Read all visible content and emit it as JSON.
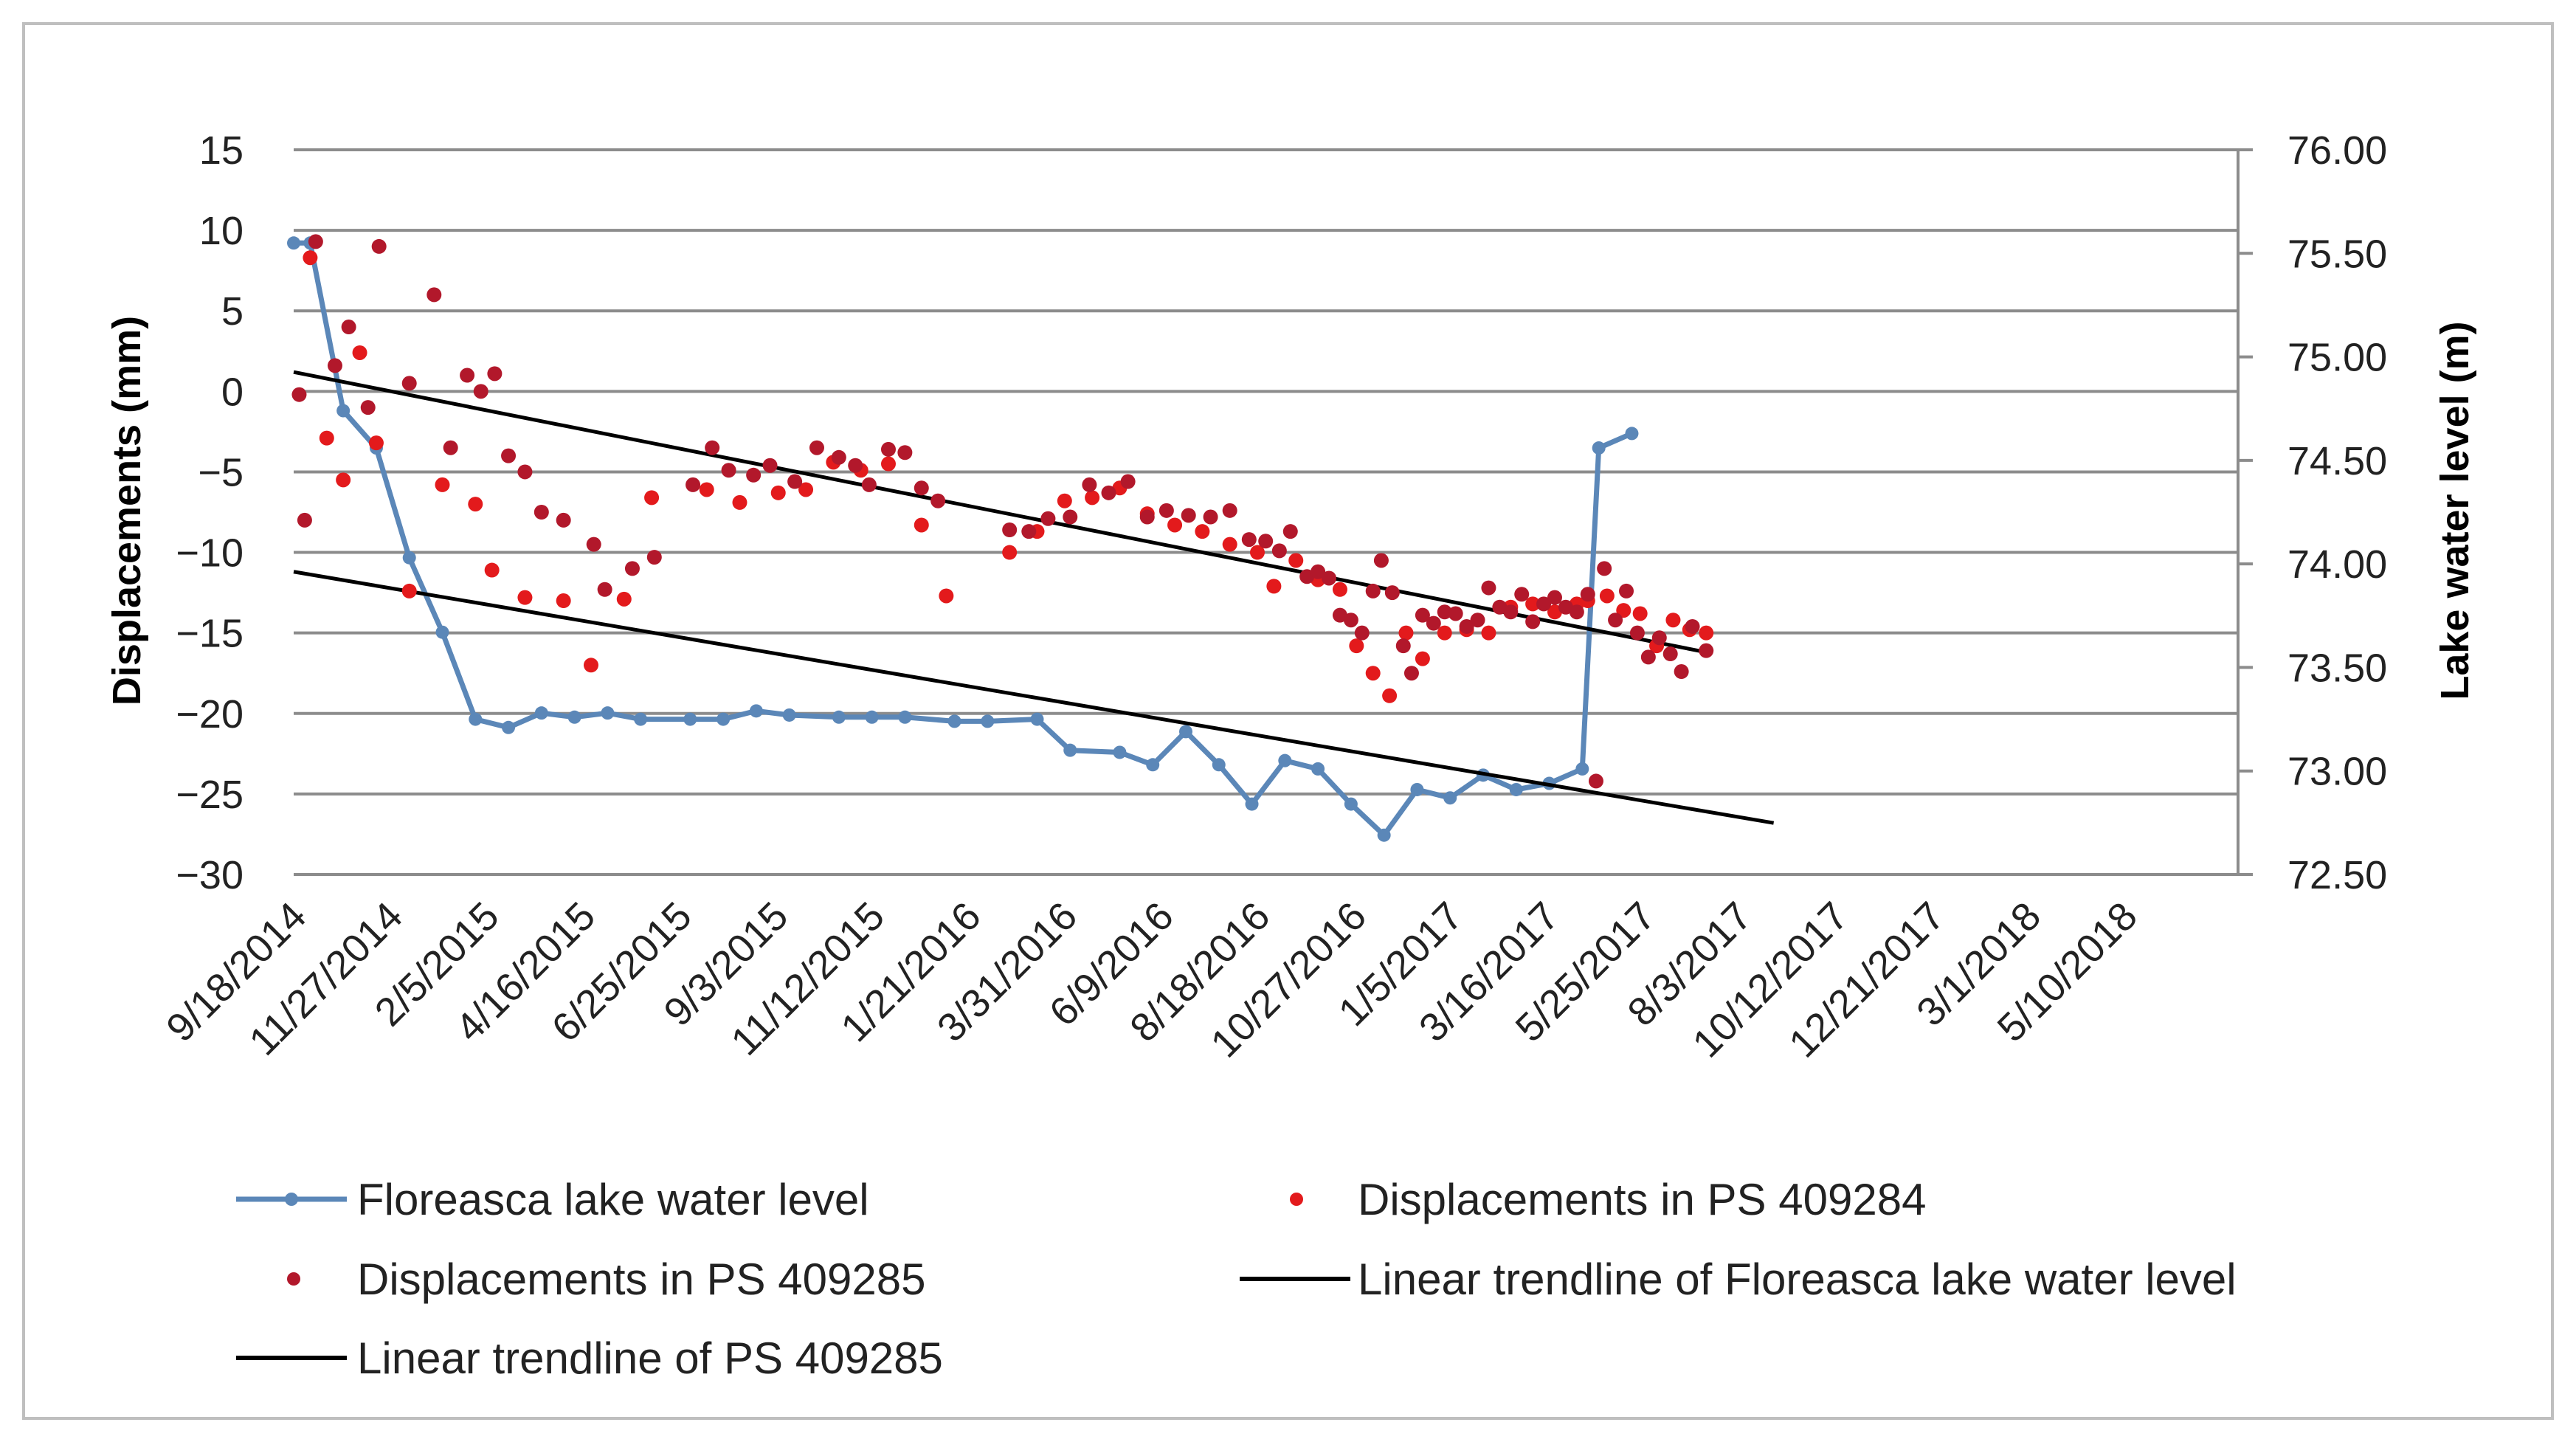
{
  "chart_data": {
    "type": "line",
    "ylabel_left": "Displacements  (mm)",
    "ylabel_right": "Lake water level (m)",
    "ylim_left": [
      -30,
      15
    ],
    "yticks_left": [
      "15",
      "10",
      "5",
      "0",
      "−5",
      "−10",
      "−15",
      "−20",
      "−25",
      "−30"
    ],
    "ylim_right": [
      72.5,
      76.0
    ],
    "yticks_right": [
      "76.00",
      "75.50",
      "75.00",
      "74.50",
      "74.00",
      "73.50",
      "73.00",
      "72.50"
    ],
    "x_tick_labels": [
      "9/18/2014",
      "11/27/2014",
      "2/5/2015",
      "4/16/2015",
      "6/25/2015",
      "9/3/2015",
      "11/12/2015",
      "1/21/2016",
      "3/31/2016",
      "6/9/2016",
      "8/18/2016",
      "10/27/2016",
      "1/5/2017",
      "3/16/2017",
      "5/25/2017",
      "8/3/2017",
      "10/12/2017",
      "12/21/2017",
      "3/1/2018",
      "5/10/2018"
    ],
    "x_unit": "days since 9/18/2014 (ticks every 70 days)",
    "series": [
      {
        "name": "Floreasca lake water level",
        "type": "line-markers",
        "axis": "right",
        "color": "#5b87b8",
        "points": [
          [
            0,
            75.55
          ],
          [
            12,
            75.55
          ],
          [
            36,
            74.74
          ],
          [
            60,
            74.56
          ],
          [
            84,
            74.03
          ],
          [
            108,
            73.67
          ],
          [
            132,
            73.25
          ],
          [
            156,
            73.21
          ],
          [
            180,
            73.28
          ],
          [
            204,
            73.26
          ],
          [
            228,
            73.28
          ],
          [
            252,
            73.25
          ],
          [
            288,
            73.25
          ],
          [
            312,
            73.25
          ],
          [
            336,
            73.29
          ],
          [
            360,
            73.27
          ],
          [
            396,
            73.26
          ],
          [
            420,
            73.26
          ],
          [
            444,
            73.26
          ],
          [
            480,
            73.24
          ],
          [
            504,
            73.24
          ],
          [
            540,
            73.25
          ],
          [
            564,
            73.1
          ],
          [
            600,
            73.09
          ],
          [
            624,
            73.03
          ],
          [
            648,
            73.19
          ],
          [
            672,
            73.03
          ],
          [
            696,
            72.84
          ],
          [
            720,
            73.05
          ],
          [
            744,
            73.01
          ],
          [
            768,
            72.84
          ],
          [
            792,
            72.69
          ],
          [
            816,
            72.91
          ],
          [
            840,
            72.87
          ],
          [
            864,
            72.98
          ],
          [
            888,
            72.91
          ],
          [
            912,
            72.94
          ],
          [
            936,
            73.01
          ],
          [
            948,
            74.56
          ],
          [
            972,
            74.63
          ]
        ]
      },
      {
        "name": "Displacements in PS 409284",
        "type": "scatter",
        "axis": "left",
        "color": "#e31a1c",
        "points": [
          [
            12,
            8.3
          ],
          [
            24,
            -2.9
          ],
          [
            36,
            -5.5
          ],
          [
            48,
            2.4
          ],
          [
            60,
            -3.2
          ],
          [
            84,
            -12.4
          ],
          [
            108,
            -5.8
          ],
          [
            132,
            -7
          ],
          [
            144,
            -11.1
          ],
          [
            168,
            -12.8
          ],
          [
            196,
            -13
          ],
          [
            216,
            -17
          ],
          [
            240,
            -12.9
          ],
          [
            260,
            -6.6
          ],
          [
            300,
            -6.1
          ],
          [
            324,
            -6.9
          ],
          [
            352,
            -6.3
          ],
          [
            372,
            -6.1
          ],
          [
            392,
            -4.4
          ],
          [
            412,
            -4.9
          ],
          [
            432,
            -4.5
          ],
          [
            456,
            -8.3
          ],
          [
            474,
            -12.7
          ],
          [
            520,
            -10
          ],
          [
            540,
            -8.7
          ],
          [
            560,
            -6.8
          ],
          [
            580,
            -6.6
          ],
          [
            600,
            -6
          ],
          [
            620,
            -7.6
          ],
          [
            640,
            -8.3
          ],
          [
            660,
            -8.7
          ],
          [
            680,
            -9.5
          ],
          [
            700,
            -10
          ],
          [
            712,
            -12.1
          ],
          [
            728,
            -10.5
          ],
          [
            744,
            -11.7
          ],
          [
            760,
            -12.3
          ],
          [
            772,
            -15.8
          ],
          [
            784,
            -17.5
          ],
          [
            796,
            -18.9
          ],
          [
            808,
            -15
          ],
          [
            820,
            -16.6
          ],
          [
            836,
            -15
          ],
          [
            852,
            -14.8
          ],
          [
            868,
            -15
          ],
          [
            884,
            -13.4
          ],
          [
            900,
            -13.2
          ],
          [
            916,
            -13.7
          ],
          [
            932,
            -13.2
          ],
          [
            940,
            -13
          ],
          [
            954,
            -12.7
          ],
          [
            966,
            -13.6
          ],
          [
            978,
            -13.8
          ],
          [
            990,
            -15.8
          ],
          [
            1002,
            -14.2
          ],
          [
            1014,
            -14.8
          ],
          [
            1026,
            -15
          ]
        ]
      },
      {
        "name": "Displacements in PS 409285",
        "type": "scatter",
        "axis": "left",
        "color": "#b2182b",
        "points": [
          [
            4,
            -0.2
          ],
          [
            8,
            -8
          ],
          [
            16,
            9.3
          ],
          [
            30,
            1.6
          ],
          [
            40,
            4
          ],
          [
            54,
            -1
          ],
          [
            62,
            9
          ],
          [
            84,
            0.5
          ],
          [
            102,
            6
          ],
          [
            114,
            -3.5
          ],
          [
            126,
            1
          ],
          [
            136,
            0
          ],
          [
            146,
            1.1
          ],
          [
            156,
            -4
          ],
          [
            168,
            -5
          ],
          [
            180,
            -7.5
          ],
          [
            196,
            -8
          ],
          [
            218,
            -9.5
          ],
          [
            226,
            -12.3
          ],
          [
            246,
            -11
          ],
          [
            262,
            -10.3
          ],
          [
            290,
            -5.8
          ],
          [
            304,
            -3.5
          ],
          [
            316,
            -4.9
          ],
          [
            334,
            -5.2
          ],
          [
            346,
            -4.6
          ],
          [
            364,
            -5.6
          ],
          [
            380,
            -3.5
          ],
          [
            396,
            -4.1
          ],
          [
            408,
            -4.6
          ],
          [
            418,
            -5.8
          ],
          [
            432,
            -3.6
          ],
          [
            444,
            -3.8
          ],
          [
            456,
            -6
          ],
          [
            468,
            -6.8
          ],
          [
            520,
            -8.6
          ],
          [
            534,
            -8.7
          ],
          [
            548,
            -7.9
          ],
          [
            564,
            -7.8
          ],
          [
            578,
            -5.8
          ],
          [
            592,
            -6.3
          ],
          [
            606,
            -5.6
          ],
          [
            620,
            -7.8
          ],
          [
            634,
            -7.4
          ],
          [
            650,
            -7.7
          ],
          [
            666,
            -7.8
          ],
          [
            680,
            -7.4
          ],
          [
            694,
            -9.2
          ],
          [
            706,
            -9.3
          ],
          [
            716,
            -9.9
          ],
          [
            724,
            -8.7
          ],
          [
            736,
            -11.5
          ],
          [
            744,
            -11.2
          ],
          [
            752,
            -11.6
          ],
          [
            760,
            -13.9
          ],
          [
            768,
            -14.2
          ],
          [
            776,
            -15
          ],
          [
            784,
            -12.4
          ],
          [
            790,
            -10.5
          ],
          [
            798,
            -12.5
          ],
          [
            806,
            -15.8
          ],
          [
            812,
            -17.5
          ],
          [
            820,
            -13.9
          ],
          [
            828,
            -14.4
          ],
          [
            836,
            -13.7
          ],
          [
            844,
            -13.8
          ],
          [
            852,
            -14.6
          ],
          [
            860,
            -14.2
          ],
          [
            868,
            -12.2
          ],
          [
            876,
            -13.4
          ],
          [
            884,
            -13.7
          ],
          [
            892,
            -12.6
          ],
          [
            900,
            -14.3
          ],
          [
            908,
            -13.2
          ],
          [
            916,
            -12.8
          ],
          [
            924,
            -13.4
          ],
          [
            932,
            -13.7
          ],
          [
            940,
            -12.6
          ],
          [
            946,
            -24.2
          ],
          [
            952,
            -11
          ],
          [
            960,
            -14.2
          ],
          [
            968,
            -12.4
          ],
          [
            976,
            -15
          ],
          [
            984,
            -16.5
          ],
          [
            992,
            -15.3
          ],
          [
            1000,
            -16.3
          ],
          [
            1008,
            -17.4
          ],
          [
            1016,
            -14.6
          ],
          [
            1026,
            -16.1
          ]
        ]
      },
      {
        "name": "Linear  trendline of  Floreasca lake water level",
        "type": "trendline",
        "axis": "left",
        "color": "#000000",
        "points": [
          [
            0,
            -11.2
          ],
          [
            1075,
            -26.8
          ]
        ]
      },
      {
        "name": "Linear  trendline of  PS 409285",
        "type": "trendline",
        "axis": "left",
        "color": "#000000",
        "points": [
          [
            0,
            1.2
          ],
          [
            1026,
            -16.2
          ]
        ]
      }
    ],
    "legend": {
      "position": "bottom",
      "entries": [
        "Floreasca lake water level",
        "Displacements in PS 409284",
        "Displacements in PS 409285",
        "Linear  trendline of  Floreasca lake water level",
        "Linear  trendline of  PS 409285"
      ]
    }
  }
}
